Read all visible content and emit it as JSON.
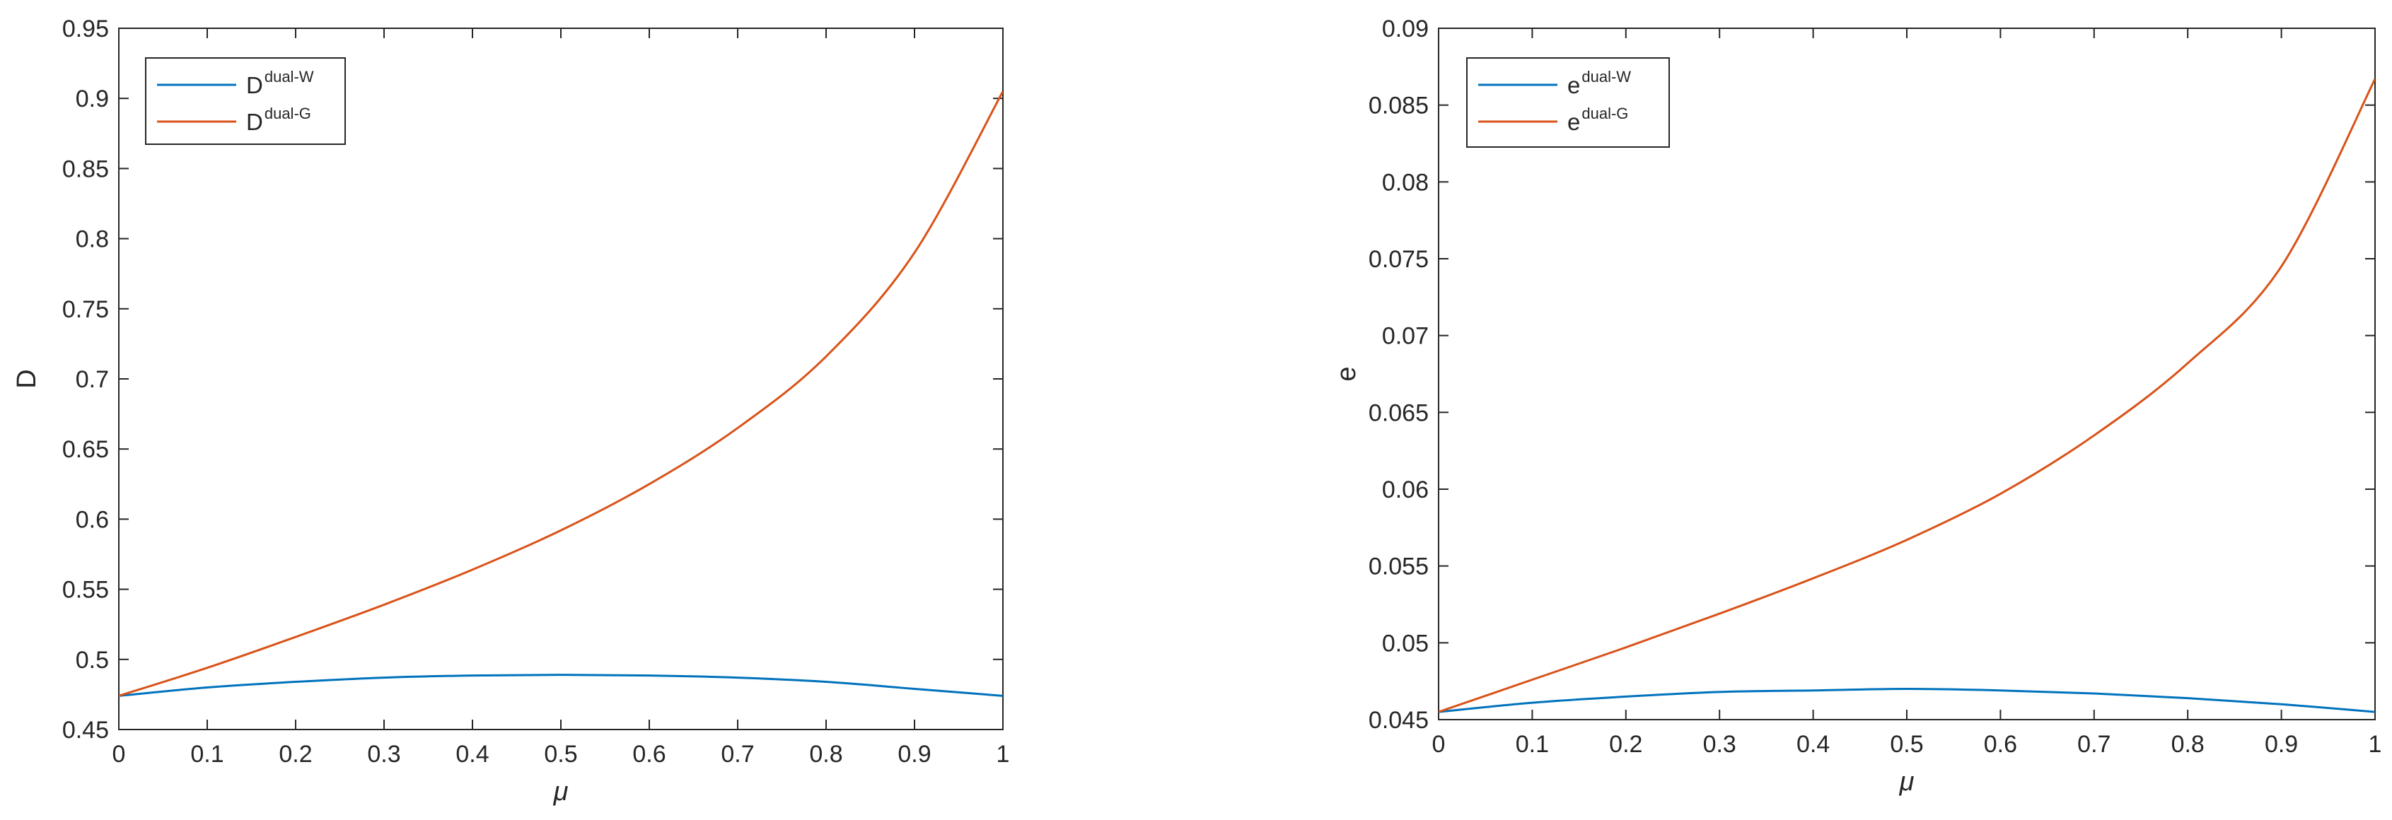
{
  "chart_data": [
    {
      "type": "line",
      "xlabel": "μ",
      "ylabel": "D",
      "xlim": [
        0,
        1
      ],
      "ylim": [
        0.45,
        0.95
      ],
      "xticks": [
        0,
        0.1,
        0.2,
        0.3,
        0.4,
        0.5,
        0.6,
        0.7,
        0.8,
        0.9,
        1
      ],
      "xtick_labels": [
        "0",
        "0.1",
        "0.2",
        "0.3",
        "0.4",
        "0.5",
        "0.6",
        "0.7",
        "0.8",
        "0.9",
        "1"
      ],
      "yticks": [
        0.45,
        0.5,
        0.55,
        0.6,
        0.65,
        0.7,
        0.75,
        0.8,
        0.85,
        0.9,
        0.95
      ],
      "ytick_labels": [
        "0.45",
        "0.5",
        "0.55",
        "0.6",
        "0.65",
        "0.7",
        "0.75",
        "0.8",
        "0.85",
        "0.9",
        "0.95"
      ],
      "legend_position": "top-left",
      "x": [
        0,
        0.1,
        0.2,
        0.3,
        0.4,
        0.5,
        0.6,
        0.7,
        0.8,
        0.9,
        1
      ],
      "series": [
        {
          "legend_base": "D",
          "legend_sup": "dual-W",
          "color": "#0072BD",
          "values": [
            0.474,
            0.48,
            0.484,
            0.487,
            0.4885,
            0.489,
            0.4885,
            0.487,
            0.484,
            0.479,
            0.474
          ]
        },
        {
          "legend_base": "D",
          "legend_sup": "dual-G",
          "color": "#D95319",
          "values": [
            0.474,
            0.494,
            0.516,
            0.539,
            0.564,
            0.592,
            0.625,
            0.665,
            0.716,
            0.79,
            0.905
          ]
        }
      ]
    },
    {
      "type": "line",
      "xlabel": "μ",
      "ylabel": "e",
      "xlim": [
        0,
        1
      ],
      "ylim": [
        0.045,
        0.09
      ],
      "xticks": [
        0,
        0.1,
        0.2,
        0.3,
        0.4,
        0.5,
        0.6,
        0.7,
        0.8,
        0.9,
        1
      ],
      "xtick_labels": [
        "0",
        "0.1",
        "0.2",
        "0.3",
        "0.4",
        "0.5",
        "0.6",
        "0.7",
        "0.8",
        "0.9",
        "1"
      ],
      "yticks": [
        0.045,
        0.05,
        0.055,
        0.06,
        0.065,
        0.07,
        0.075,
        0.08,
        0.085,
        0.09
      ],
      "ytick_labels": [
        "0.045",
        "0.05",
        "0.055",
        "0.06",
        "0.065",
        "0.07",
        "0.075",
        "0.08",
        "0.085",
        "0.09"
      ],
      "legend_position": "top-left",
      "x": [
        0,
        0.1,
        0.2,
        0.3,
        0.4,
        0.5,
        0.6,
        0.7,
        0.8,
        0.9,
        1
      ],
      "series": [
        {
          "legend_base": "e",
          "legend_sup": "dual-W",
          "color": "#0072BD",
          "values": [
            0.0455,
            0.0461,
            0.0465,
            0.0468,
            0.0469,
            0.047,
            0.0469,
            0.0467,
            0.0464,
            0.046,
            0.0455
          ]
        },
        {
          "legend_base": "e",
          "legend_sup": "dual-G",
          "color": "#D95319",
          "values": [
            0.0455,
            0.0476,
            0.0497,
            0.0519,
            0.0542,
            0.0567,
            0.0597,
            0.0635,
            0.0682,
            0.0745,
            0.0867
          ]
        }
      ]
    }
  ]
}
